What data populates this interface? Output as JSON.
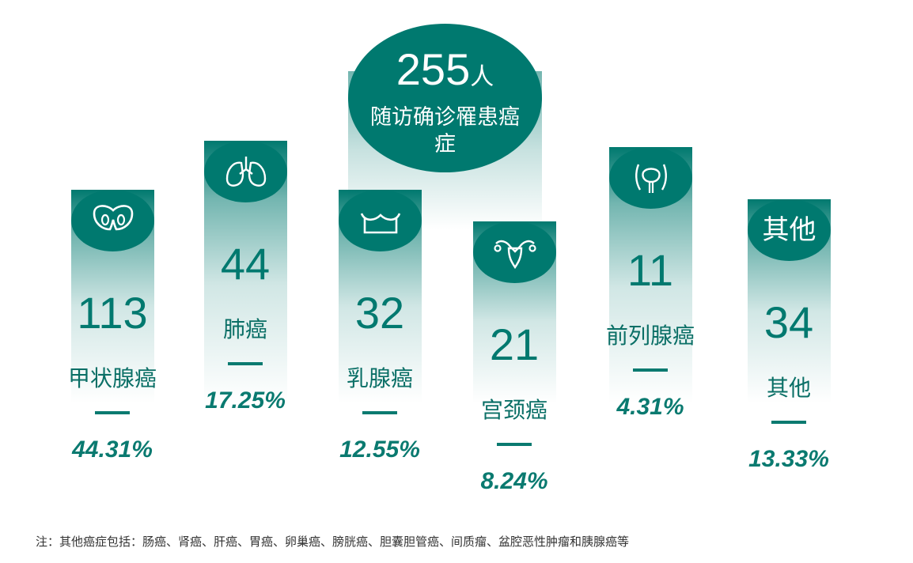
{
  "total": {
    "value": "255",
    "unit": "人",
    "caption": "随访确诊罹患癌症"
  },
  "chart_data": {
    "type": "bar",
    "categories": [
      "甲状腺癌",
      "肺癌",
      "乳腺癌",
      "宫颈癌",
      "前列腺癌",
      "其他"
    ],
    "series": [
      {
        "values": [
          113,
          44,
          32,
          21,
          11,
          34
        ]
      },
      {
        "values": [
          "44.31%",
          "17.25%",
          "12.55%",
          "8.24%",
          "4.31%",
          "13.33%"
        ]
      }
    ],
    "icons": [
      "thyroid-icon",
      "lung-icon",
      "breast-icon",
      "uterus-icon",
      "prostate-icon",
      ""
    ],
    "cap_text": [
      "",
      "",
      "",
      "",
      "",
      "其他"
    ],
    "total": 255,
    "colors": {
      "primary": "#00796f",
      "text": "#0a7a70",
      "glow": "#cfe7e3"
    }
  },
  "footnote": "注：其他癌症包括：肠癌、肾癌、肝癌、胃癌、卵巢癌、膀胱癌、胆囊胆管癌、间质瘤、盆腔恶性肿瘤和胰腺癌等"
}
